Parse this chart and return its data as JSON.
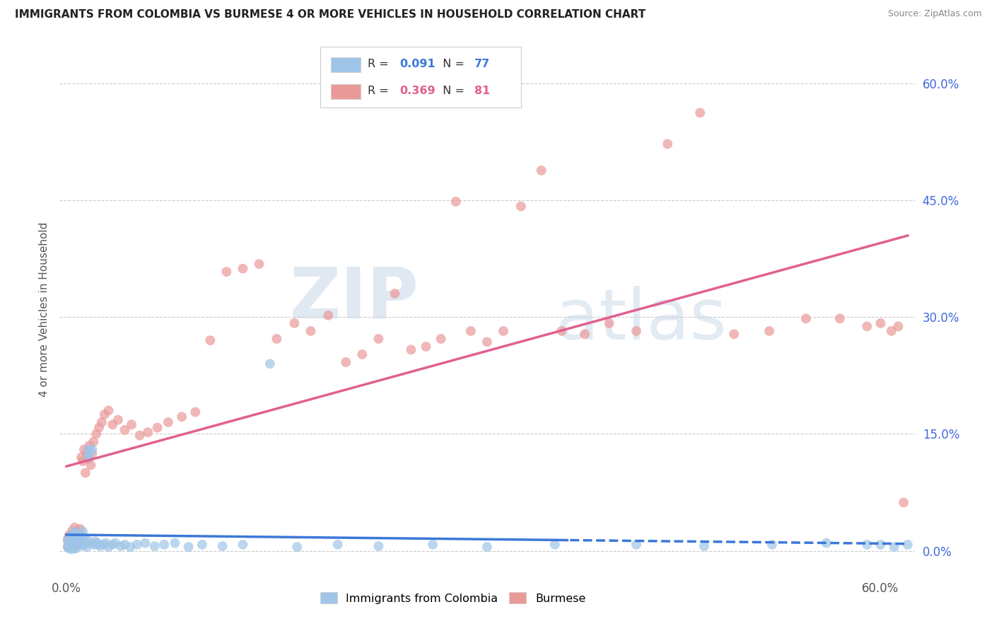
{
  "title": "IMMIGRANTS FROM COLOMBIA VS BURMESE 4 OR MORE VEHICLES IN HOUSEHOLD CORRELATION CHART",
  "source": "Source: ZipAtlas.com",
  "ylabel": "4 or more Vehicles in Household",
  "xlim": [
    -0.005,
    0.625
  ],
  "ylim": [
    -0.03,
    0.65
  ],
  "xtick_vals": [
    0.0,
    0.1,
    0.2,
    0.3,
    0.4,
    0.5,
    0.6
  ],
  "xticklabels": [
    "0.0%",
    "",
    "",
    "",
    "",
    "",
    "60.0%"
  ],
  "ytick_vals": [
    0.0,
    0.15,
    0.3,
    0.45,
    0.6
  ],
  "yticklabels": [
    "0.0%",
    "15.0%",
    "30.0%",
    "45.0%",
    "60.0%"
  ],
  "colombia_color": "#9fc5e8",
  "burmese_color": "#ea9999",
  "colombia_line_color": "#3c78d8",
  "burmese_line_color": "#e06090",
  "watermark_zip": "ZIP",
  "watermark_atlas": "atlas",
  "legend_label1": "Immigrants from Colombia",
  "legend_label2": "Burmese",
  "colombia_R": "0.091",
  "colombia_N": "77",
  "burmese_R": "0.369",
  "burmese_N": "81",
  "colombia_x": [
    0.001,
    0.001,
    0.002,
    0.002,
    0.002,
    0.003,
    0.003,
    0.003,
    0.004,
    0.004,
    0.004,
    0.005,
    0.005,
    0.005,
    0.006,
    0.006,
    0.006,
    0.007,
    0.007,
    0.007,
    0.008,
    0.008,
    0.009,
    0.009,
    0.01,
    0.01,
    0.011,
    0.011,
    0.012,
    0.012,
    0.013,
    0.013,
    0.014,
    0.015,
    0.015,
    0.016,
    0.016,
    0.017,
    0.018,
    0.019,
    0.02,
    0.021,
    0.022,
    0.023,
    0.025,
    0.027,
    0.029,
    0.031,
    0.034,
    0.036,
    0.04,
    0.043,
    0.047,
    0.052,
    0.058,
    0.065,
    0.072,
    0.08,
    0.09,
    0.1,
    0.115,
    0.13,
    0.15,
    0.17,
    0.2,
    0.23,
    0.27,
    0.31,
    0.36,
    0.42,
    0.47,
    0.52,
    0.56,
    0.59,
    0.6,
    0.61,
    0.62
  ],
  "colombia_y": [
    0.005,
    0.012,
    0.008,
    0.015,
    0.003,
    0.01,
    0.018,
    0.004,
    0.007,
    0.02,
    0.002,
    0.012,
    0.022,
    0.006,
    0.015,
    0.025,
    0.004,
    0.01,
    0.018,
    0.003,
    0.012,
    0.02,
    0.008,
    0.015,
    0.01,
    0.02,
    0.007,
    0.015,
    0.012,
    0.025,
    0.008,
    0.018,
    0.01,
    0.015,
    0.005,
    0.13,
    0.12,
    0.125,
    0.01,
    0.13,
    0.008,
    0.012,
    0.008,
    0.01,
    0.006,
    0.008,
    0.01,
    0.005,
    0.008,
    0.01,
    0.006,
    0.008,
    0.005,
    0.008,
    0.01,
    0.006,
    0.008,
    0.01,
    0.005,
    0.008,
    0.006,
    0.008,
    0.24,
    0.005,
    0.008,
    0.006,
    0.008,
    0.005,
    0.008,
    0.008,
    0.006,
    0.008,
    0.01,
    0.008,
    0.008,
    0.005,
    0.008
  ],
  "burmese_x": [
    0.001,
    0.001,
    0.002,
    0.002,
    0.003,
    0.003,
    0.004,
    0.004,
    0.005,
    0.005,
    0.006,
    0.006,
    0.007,
    0.007,
    0.008,
    0.008,
    0.009,
    0.009,
    0.01,
    0.01,
    0.011,
    0.012,
    0.013,
    0.014,
    0.015,
    0.016,
    0.017,
    0.018,
    0.019,
    0.02,
    0.022,
    0.024,
    0.026,
    0.028,
    0.031,
    0.034,
    0.038,
    0.043,
    0.048,
    0.054,
    0.06,
    0.067,
    0.075,
    0.085,
    0.095,
    0.106,
    0.118,
    0.13,
    0.142,
    0.155,
    0.168,
    0.18,
    0.193,
    0.206,
    0.218,
    0.23,
    0.242,
    0.254,
    0.265,
    0.276,
    0.287,
    0.298,
    0.31,
    0.322,
    0.335,
    0.35,
    0.365,
    0.382,
    0.4,
    0.42,
    0.443,
    0.467,
    0.492,
    0.518,
    0.545,
    0.57,
    0.59,
    0.6,
    0.608,
    0.613,
    0.617
  ],
  "burmese_y": [
    0.005,
    0.015,
    0.01,
    0.02,
    0.008,
    0.018,
    0.012,
    0.025,
    0.01,
    0.022,
    0.015,
    0.03,
    0.008,
    0.02,
    0.012,
    0.025,
    0.01,
    0.022,
    0.015,
    0.028,
    0.12,
    0.115,
    0.13,
    0.1,
    0.125,
    0.118,
    0.135,
    0.11,
    0.125,
    0.14,
    0.15,
    0.158,
    0.165,
    0.175,
    0.18,
    0.162,
    0.168,
    0.155,
    0.162,
    0.148,
    0.152,
    0.158,
    0.165,
    0.172,
    0.178,
    0.27,
    0.358,
    0.362,
    0.368,
    0.272,
    0.292,
    0.282,
    0.302,
    0.242,
    0.252,
    0.272,
    0.33,
    0.258,
    0.262,
    0.272,
    0.448,
    0.282,
    0.268,
    0.282,
    0.442,
    0.488,
    0.282,
    0.278,
    0.292,
    0.282,
    0.522,
    0.562,
    0.278,
    0.282,
    0.298,
    0.298,
    0.288,
    0.292,
    0.282,
    0.288,
    0.062
  ]
}
